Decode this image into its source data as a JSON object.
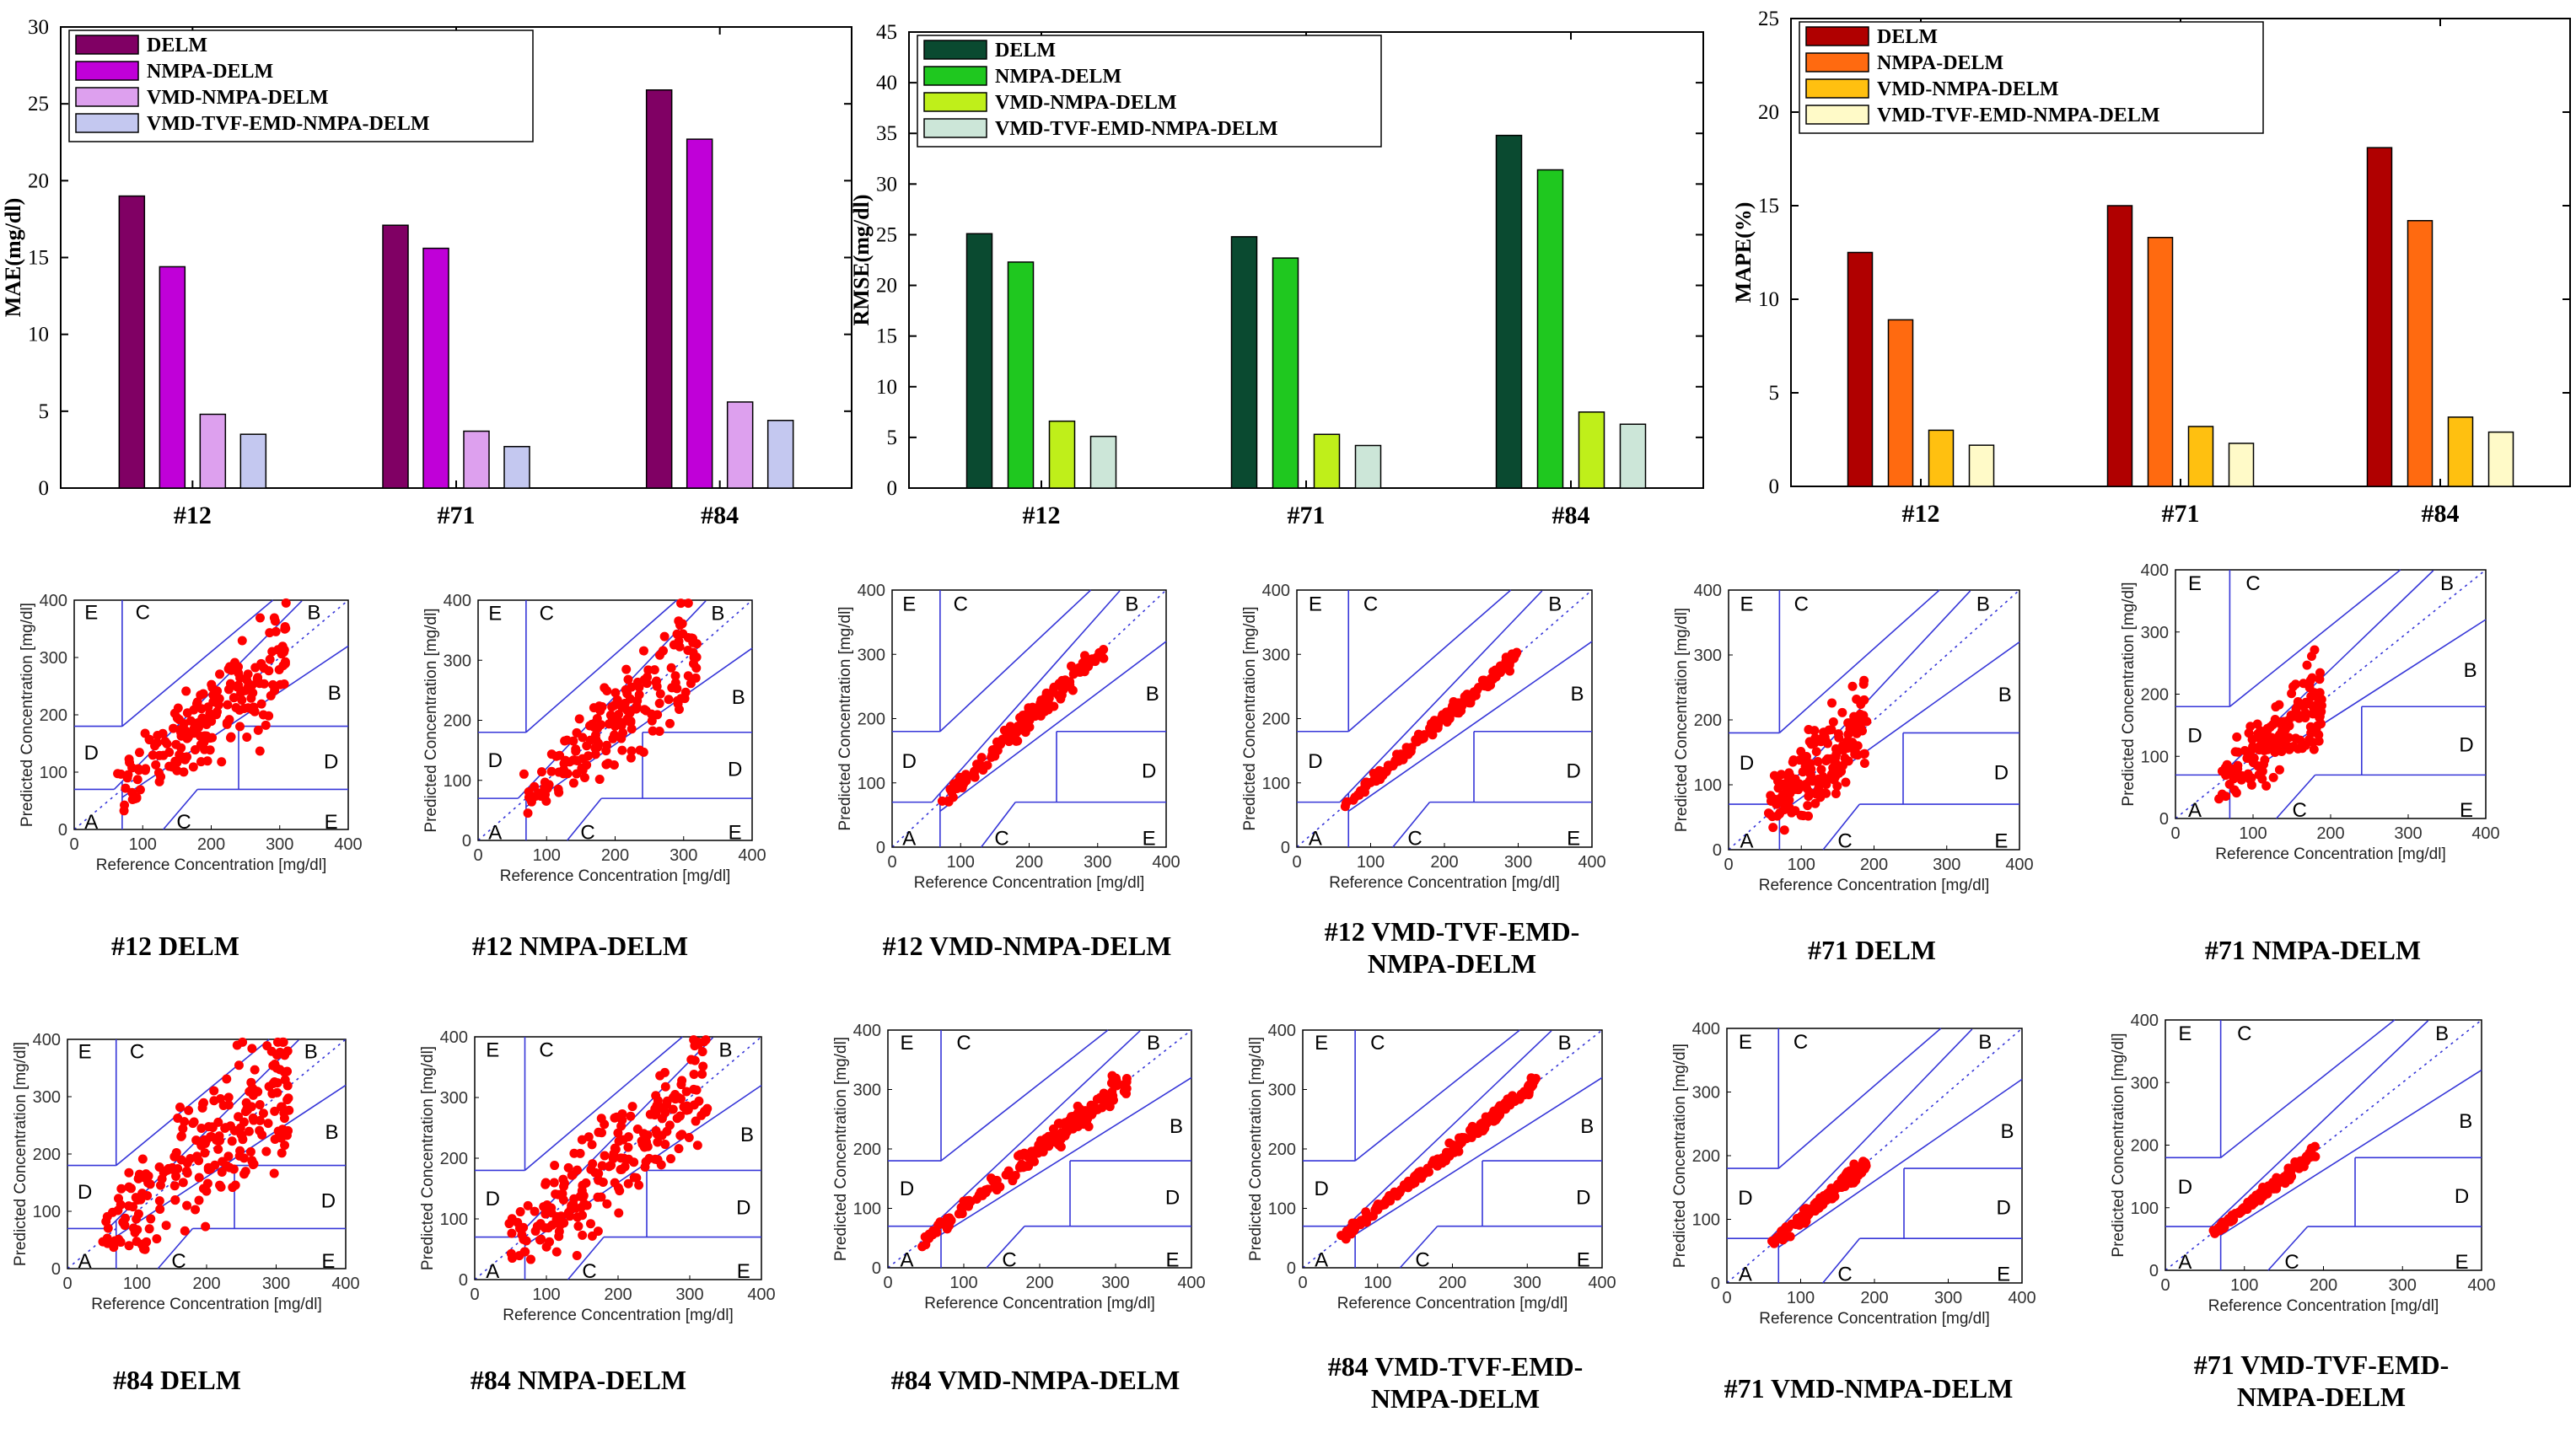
{
  "chart_data": [
    {
      "type": "bar",
      "categories": [
        "#12",
        "#71",
        "#84"
      ],
      "ylabel": "MAE(mg/dl)",
      "ylim": [
        0,
        30
      ],
      "yticks": [
        "0",
        "5",
        "10",
        "15",
        "20",
        "25",
        "30"
      ],
      "series": [
        {
          "name": "DELM",
          "color": "#800064",
          "values": [
            19.0,
            17.1,
            25.9
          ]
        },
        {
          "name": "NMPA-DELM",
          "color": "#C000D8",
          "values": [
            14.4,
            15.6,
            22.7
          ]
        },
        {
          "name": "VMD-NMPA-DELM",
          "color": "#DDA0EE",
          "values": [
            4.8,
            3.7,
            5.6
          ]
        },
        {
          "name": "VMD-TVF-EMD-NMPA-DELM",
          "color": "#C4C8F0",
          "values": [
            3.5,
            2.7,
            4.4
          ]
        }
      ]
    },
    {
      "type": "bar",
      "categories": [
        "#12",
        "#71",
        "#84"
      ],
      "ylabel": "RMSE(mg/dl)",
      "ylim": [
        0,
        45
      ],
      "yticks": [
        "0",
        "5",
        "10",
        "15",
        "20",
        "25",
        "30",
        "35",
        "40",
        "45"
      ],
      "series": [
        {
          "name": "DELM",
          "color": "#0A4A30",
          "values": [
            25.1,
            24.8,
            34.8
          ]
        },
        {
          "name": "NMPA-DELM",
          "color": "#1FC81F",
          "values": [
            22.3,
            22.7,
            31.4
          ]
        },
        {
          "name": "VMD-NMPA-DELM",
          "color": "#BFEF1A",
          "values": [
            6.6,
            5.3,
            7.5
          ]
        },
        {
          "name": "VMD-TVF-EMD-NMPA-DELM",
          "color": "#CCE6D8",
          "values": [
            5.1,
            4.2,
            6.3
          ]
        }
      ]
    },
    {
      "type": "bar",
      "categories": [
        "#12",
        "#71",
        "#84"
      ],
      "ylabel": "MAPE(%)",
      "ylim": [
        0,
        25
      ],
      "yticks": [
        "0",
        "5",
        "10",
        "15",
        "20",
        "25"
      ],
      "series": [
        {
          "name": "DELM",
          "color": "#B00000",
          "values": [
            12.5,
            15.0,
            18.1
          ]
        },
        {
          "name": "NMPA-DELM",
          "color": "#FF6A10",
          "values": [
            8.9,
            13.3,
            14.2
          ]
        },
        {
          "name": "VMD-NMPA-DELM",
          "color": "#FFC010",
          "values": [
            3.0,
            3.2,
            3.7
          ]
        },
        {
          "name": "VMD-TVF-EMD-NMPA-DELM",
          "color": "#FFFAC8",
          "values": [
            2.2,
            2.3,
            2.9
          ]
        }
      ]
    }
  ],
  "clarke_grids": {
    "type": "scatter",
    "xlabel": "Reference Concentration [mg/dl]",
    "ylabel": "Predicted Concentration [mg/dl]",
    "ticks": [
      "0",
      "100",
      "200",
      "300",
      "400"
    ],
    "xlim": [
      0,
      400
    ],
    "ylim": [
      0,
      400
    ],
    "zones": [
      "A",
      "B",
      "B",
      "C",
      "C",
      "D",
      "D",
      "E",
      "E"
    ],
    "line_color": "#3636D8",
    "point_color": "#FF0000",
    "panels": [
      {
        "caption": [
          "#12 DELM"
        ],
        "spread": 45,
        "xmin": 60,
        "xmax": 310,
        "n": 190
      },
      {
        "caption": [
          "#12 NMPA-DELM"
        ],
        "spread": 40,
        "xmin": 65,
        "xmax": 320,
        "n": 180
      },
      {
        "caption": [
          "#12 VMD-NMPA-DELM"
        ],
        "spread": 9,
        "xmin": 65,
        "xmax": 310,
        "n": 150
      },
      {
        "caption": [
          "#12 VMD-TVF-EMD-",
          "NMPA-DELM"
        ],
        "spread": 6,
        "xmin": 65,
        "xmax": 300,
        "n": 150
      },
      {
        "caption": [
          "#71 DELM"
        ],
        "spread": 45,
        "xmin": 55,
        "xmax": 190,
        "n": 170
      },
      {
        "caption": [
          "#71 NMPA-DELM"
        ],
        "spread": 40,
        "xmin": 55,
        "xmax": 190,
        "n": 160
      },
      {
        "caption": [
          "#84 DELM"
        ],
        "spread": 55,
        "xmin": 50,
        "xmax": 320,
        "n": 230
      },
      {
        "caption": [
          "#84 NMPA-DELM"
        ],
        "spread": 50,
        "xmin": 45,
        "xmax": 325,
        "n": 220
      },
      {
        "caption": [
          "#84 VMD-NMPA-DELM"
        ],
        "spread": 10,
        "xmin": 45,
        "xmax": 315,
        "n": 170
      },
      {
        "caption": [
          "#84 VMD-TVF-EMD-",
          "NMPA-DELM"
        ],
        "spread": 7,
        "xmin": 40,
        "xmax": 315,
        "n": 170
      },
      {
        "caption": [
          "#71 VMD-NMPA-DELM"
        ],
        "spread": 8,
        "xmin": 60,
        "xmax": 190,
        "n": 120
      },
      {
        "caption": [
          "#71 VMD-TVF-EMD-",
          "NMPA-DELM"
        ],
        "spread": 6,
        "xmin": 60,
        "xmax": 190,
        "n": 110
      }
    ]
  }
}
